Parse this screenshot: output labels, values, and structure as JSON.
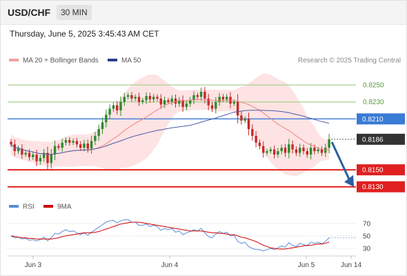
{
  "header": {
    "symbol": "USD/CHF",
    "timeframe": "30 MIN"
  },
  "timestamp": "Thursday, June 5, 2025 3:45:43 AM CET",
  "legend": {
    "bollinger": "MA 20 + Bollinger Bands",
    "ma50": "MA 50",
    "credit": "Research © 2025 Trading Central",
    "rsi": "RSI",
    "rsi_ma": "9MA"
  },
  "colors": {
    "up_candle": "#2e8b2e",
    "down_candle": "#c62828",
    "bands_fill": "#fde0e0",
    "ma20": "#f08080",
    "ma50": "#4a5aa8",
    "support": "#e02020",
    "pivot": "#3a7bd5",
    "resistance": "#a8d08d",
    "last_price": "#333333",
    "arrow": "#2a5fa0",
    "rsi": "#5b8bd8",
    "rsi_ma": "#cc0000"
  },
  "chart_data": [
    {
      "type": "candlestick",
      "levels": [
        {
          "value": 0.825,
          "label": "0.8250",
          "kind": "resistance"
        },
        {
          "value": 0.823,
          "label": "0.8230",
          "kind": "resistance"
        },
        {
          "value": 0.821,
          "label": "0.8210",
          "kind": "pivot"
        },
        {
          "value": 0.815,
          "label": "0.8150",
          "kind": "support"
        },
        {
          "value": 0.813,
          "label": "0.8130",
          "kind": "support"
        }
      ],
      "last_price": {
        "value": 0.8186,
        "label": "0.8186"
      },
      "projection": {
        "from": 0.8186,
        "to": 0.813
      },
      "ylim": [
        0.812,
        0.8268
      ],
      "x_ticks": [
        "Jun 3",
        "Jun 4",
        "Jun 5",
        "Jun 14"
      ],
      "close": [
        0.818,
        0.8172,
        0.8175,
        0.8168,
        0.817,
        0.8165,
        0.8168,
        0.816,
        0.8164,
        0.817,
        0.8158,
        0.8168,
        0.8178,
        0.8176,
        0.8182,
        0.8185,
        0.8182,
        0.8184,
        0.818,
        0.8176,
        0.8181,
        0.8175,
        0.8184,
        0.819,
        0.8198,
        0.8206,
        0.8215,
        0.8222,
        0.8226,
        0.822,
        0.823,
        0.8236,
        0.8238,
        0.8234,
        0.8236,
        0.823,
        0.8232,
        0.8237,
        0.8233,
        0.8236,
        0.8234,
        0.8227,
        0.8232,
        0.823,
        0.8234,
        0.8228,
        0.8232,
        0.8224,
        0.8228,
        0.8232,
        0.8238,
        0.8236,
        0.8242,
        0.8234,
        0.8226,
        0.8222,
        0.823,
        0.8236,
        0.8233,
        0.8236,
        0.8228,
        0.823,
        0.8214,
        0.8208,
        0.821,
        0.8198,
        0.819,
        0.8182,
        0.8178,
        0.817,
        0.8172,
        0.8174,
        0.8168,
        0.8172,
        0.8176,
        0.817,
        0.818,
        0.8174,
        0.817,
        0.8176,
        0.8172,
        0.8168,
        0.8176,
        0.8172,
        0.8174,
        0.817,
        0.8176,
        0.8186
      ]
    },
    {
      "type": "line",
      "title": "RSI",
      "x_ticks": [
        "Jun 3",
        "Jun 4",
        "Jun 5",
        "Jun 14"
      ],
      "y_ticks": [
        70,
        50,
        30
      ],
      "ylim": [
        20,
        82
      ],
      "series": [
        {
          "name": "RSI",
          "values": [
            50,
            47,
            48,
            45,
            46,
            43,
            44,
            42,
            44,
            48,
            42,
            47,
            54,
            53,
            57,
            60,
            57,
            58,
            55,
            52,
            55,
            51,
            56,
            60,
            64,
            68,
            72,
            74,
            75,
            71,
            74,
            76,
            76,
            72,
            72,
            67,
            67,
            69,
            65,
            67,
            65,
            59,
            62,
            60,
            62,
            56,
            58,
            52,
            55,
            57,
            60,
            58,
            62,
            55,
            49,
            47,
            53,
            57,
            54,
            56,
            50,
            51,
            41,
            38,
            40,
            33,
            30,
            28,
            28,
            26,
            28,
            30,
            28,
            31,
            34,
            32,
            39,
            35,
            33,
            38,
            36,
            34,
            40,
            38,
            40,
            37,
            41,
            47
          ]
        },
        {
          "name": "9MA",
          "values": [
            50,
            49,
            48,
            47,
            47,
            46,
            46,
            45,
            45,
            45,
            45,
            45,
            46,
            47,
            49,
            50,
            51,
            52,
            53,
            54,
            55,
            55,
            55,
            56,
            57,
            59,
            61,
            63,
            65,
            67,
            69,
            70,
            71,
            72,
            72,
            72,
            71,
            70,
            69,
            68,
            67,
            66,
            65,
            64,
            63,
            62,
            61,
            60,
            59,
            58,
            58,
            58,
            58,
            57,
            56,
            55,
            55,
            54,
            54,
            53,
            52,
            52,
            50,
            48,
            47,
            45,
            43,
            41,
            38,
            35,
            33,
            31,
            30,
            29,
            29,
            29,
            30,
            31,
            32,
            33,
            34,
            35,
            35,
            36,
            37,
            37,
            38,
            40
          ]
        }
      ]
    }
  ]
}
